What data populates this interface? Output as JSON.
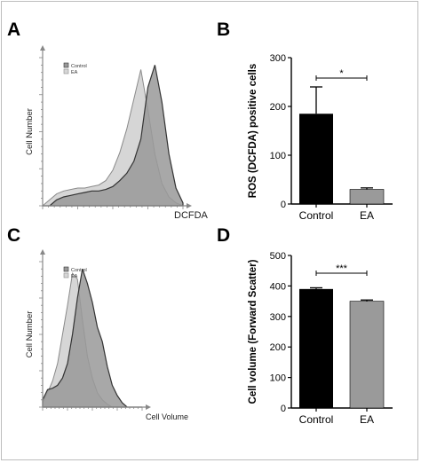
{
  "panels": {
    "A": {
      "letter": "A"
    },
    "B": {
      "letter": "B"
    },
    "C": {
      "letter": "C"
    },
    "D": {
      "letter": "D"
    }
  },
  "colors": {
    "control_hist_fill": "#999999",
    "control_hist_stroke": "#333333",
    "ea_hist_fill": "#d6d6d6",
    "ea_hist_stroke": "#8a8a8a",
    "control_bar": "#000000",
    "ea_bar_B": "#9a9a9a",
    "ea_bar_D": "#9a9a9a",
    "axis": "#000000"
  },
  "chart_data": [
    {
      "panel": "A",
      "type": "area",
      "title": "",
      "xlabel": "DCFDA",
      "ylabel": "Cell Number",
      "x_scale": "log",
      "legend": {
        "placement": "top-left",
        "entries": [
          "Control",
          "EA"
        ]
      },
      "x": [
        0,
        0.05,
        0.1,
        0.15,
        0.2,
        0.25,
        0.3,
        0.35,
        0.4,
        0.45,
        0.5,
        0.55,
        0.6,
        0.65,
        0.7,
        0.75,
        0.8,
        0.85,
        0.9,
        0.95,
        1.0
      ],
      "series": [
        {
          "name": "Control",
          "values": [
            0,
            0,
            0.04,
            0.06,
            0.07,
            0.08,
            0.09,
            0.1,
            0.1,
            0.11,
            0.13,
            0.17,
            0.22,
            0.3,
            0.45,
            0.8,
            0.95,
            0.7,
            0.35,
            0.12,
            0.02
          ]
        },
        {
          "name": "EA",
          "values": [
            0,
            0.04,
            0.08,
            0.1,
            0.11,
            0.12,
            0.12,
            0.13,
            0.14,
            0.17,
            0.24,
            0.36,
            0.52,
            0.72,
            0.92,
            0.65,
            0.35,
            0.15,
            0.06,
            0.02,
            0
          ]
        }
      ]
    },
    {
      "panel": "B",
      "type": "bar",
      "title": "",
      "xlabel": "",
      "ylabel": "ROS (DCFDA) positive cells",
      "ylim": [
        0,
        300
      ],
      "yticks": [
        0,
        100,
        200,
        300
      ],
      "categories": [
        "Control",
        "EA"
      ],
      "values": [
        185,
        30
      ],
      "errors": [
        55,
        3
      ],
      "significance": "*"
    },
    {
      "panel": "C",
      "type": "area",
      "title": "",
      "xlabel": "Cell Volume",
      "ylabel": "Cell Number",
      "legend": {
        "placement": "top-left",
        "entries": [
          "Control",
          "EA"
        ]
      },
      "x": [
        0,
        0.05,
        0.1,
        0.15,
        0.2,
        0.25,
        0.3,
        0.35,
        0.4,
        0.45,
        0.5,
        0.55,
        0.6,
        0.65,
        0.7,
        0.75,
        0.8,
        0.85,
        0.9,
        0.95,
        1.0
      ],
      "series": [
        {
          "name": "Control",
          "values": [
            0.05,
            0.12,
            0.13,
            0.15,
            0.2,
            0.3,
            0.5,
            0.75,
            0.95,
            0.85,
            0.72,
            0.55,
            0.45,
            0.28,
            0.15,
            0.08,
            0.03,
            0,
            0,
            0,
            0
          ]
        },
        {
          "name": "EA",
          "values": [
            0.03,
            0.1,
            0.18,
            0.3,
            0.5,
            0.7,
            0.92,
            0.88,
            0.6,
            0.35,
            0.2,
            0.1,
            0.05,
            0.02,
            0,
            0,
            0,
            0,
            0,
            0,
            0
          ]
        }
      ]
    },
    {
      "panel": "D",
      "type": "bar",
      "title": "",
      "xlabel": "",
      "ylabel": "Cell volume (Forward Scatter)",
      "ylim": [
        0,
        500
      ],
      "yticks": [
        0,
        100,
        200,
        300,
        400,
        500
      ],
      "categories": [
        "Control",
        "EA"
      ],
      "values": [
        390,
        350
      ],
      "errors": [
        4,
        4
      ],
      "significance": "***"
    }
  ]
}
